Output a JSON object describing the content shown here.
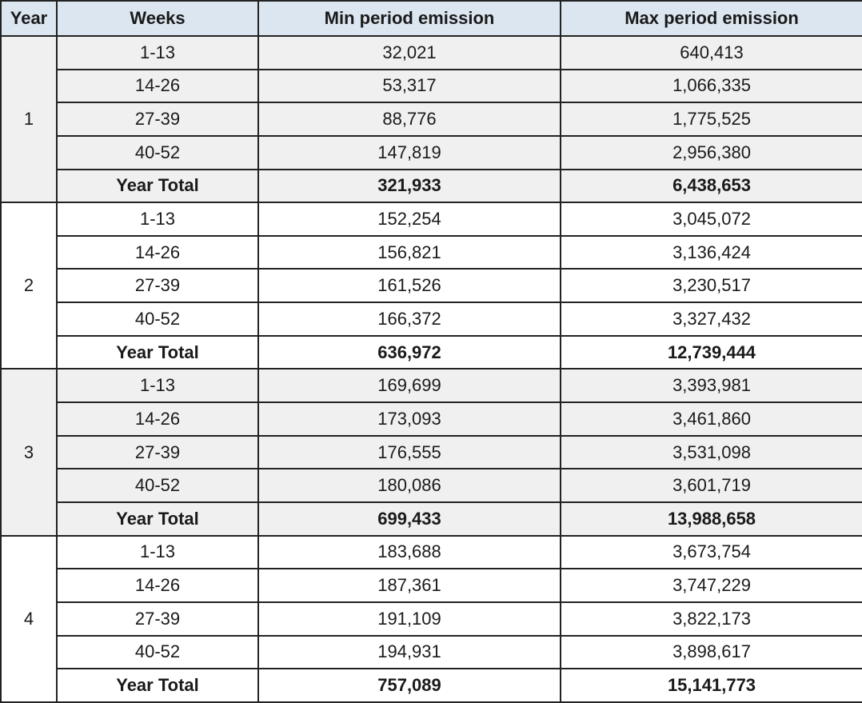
{
  "table": {
    "headers": {
      "year": "Year",
      "weeks": "Weeks",
      "min": "Min period emission",
      "max": "Max period emission"
    },
    "year_total_label": "Year Total",
    "years": [
      {
        "year": "1",
        "shaded": true,
        "rows": [
          {
            "weeks": "1-13",
            "min": "32,021",
            "max": "640,413"
          },
          {
            "weeks": "14-26",
            "min": "53,317",
            "max": "1,066,335"
          },
          {
            "weeks": "27-39",
            "min": "88,776",
            "max": "1,775,525"
          },
          {
            "weeks": "40-52",
            "min": "147,819",
            "max": "2,956,380"
          }
        ],
        "total": {
          "min": "321,933",
          "max": "6,438,653"
        }
      },
      {
        "year": "2",
        "shaded": false,
        "rows": [
          {
            "weeks": "1-13",
            "min": "152,254",
            "max": "3,045,072"
          },
          {
            "weeks": "14-26",
            "min": "156,821",
            "max": "3,136,424"
          },
          {
            "weeks": "27-39",
            "min": "161,526",
            "max": "3,230,517"
          },
          {
            "weeks": "40-52",
            "min": "166,372",
            "max": "3,327,432"
          }
        ],
        "total": {
          "min": "636,972",
          "max": "12,739,444"
        }
      },
      {
        "year": "3",
        "shaded": true,
        "rows": [
          {
            "weeks": "1-13",
            "min": "169,699",
            "max": "3,393,981"
          },
          {
            "weeks": "14-26",
            "min": "173,093",
            "max": "3,461,860"
          },
          {
            "weeks": "27-39",
            "min": "176,555",
            "max": "3,531,098"
          },
          {
            "weeks": "40-52",
            "min": "180,086",
            "max": "3,601,719"
          }
        ],
        "total": {
          "min": "699,433",
          "max": "13,988,658"
        }
      },
      {
        "year": "4",
        "shaded": false,
        "rows": [
          {
            "weeks": "1-13",
            "min": "183,688",
            "max": "3,673,754"
          },
          {
            "weeks": "14-26",
            "min": "187,361",
            "max": "3,747,229"
          },
          {
            "weeks": "27-39",
            "min": "191,109",
            "max": "3,822,173"
          },
          {
            "weeks": "40-52",
            "min": "194,931",
            "max": "3,898,617"
          }
        ],
        "total": {
          "min": "757,089",
          "max": "15,141,773"
        }
      }
    ],
    "colors": {
      "header_bg": "#dce6f1",
      "shaded_block_bg": "#f0f0f0",
      "white_block_bg": "#ffffff",
      "border": "#222222",
      "text": "#1a1a1a"
    }
  }
}
